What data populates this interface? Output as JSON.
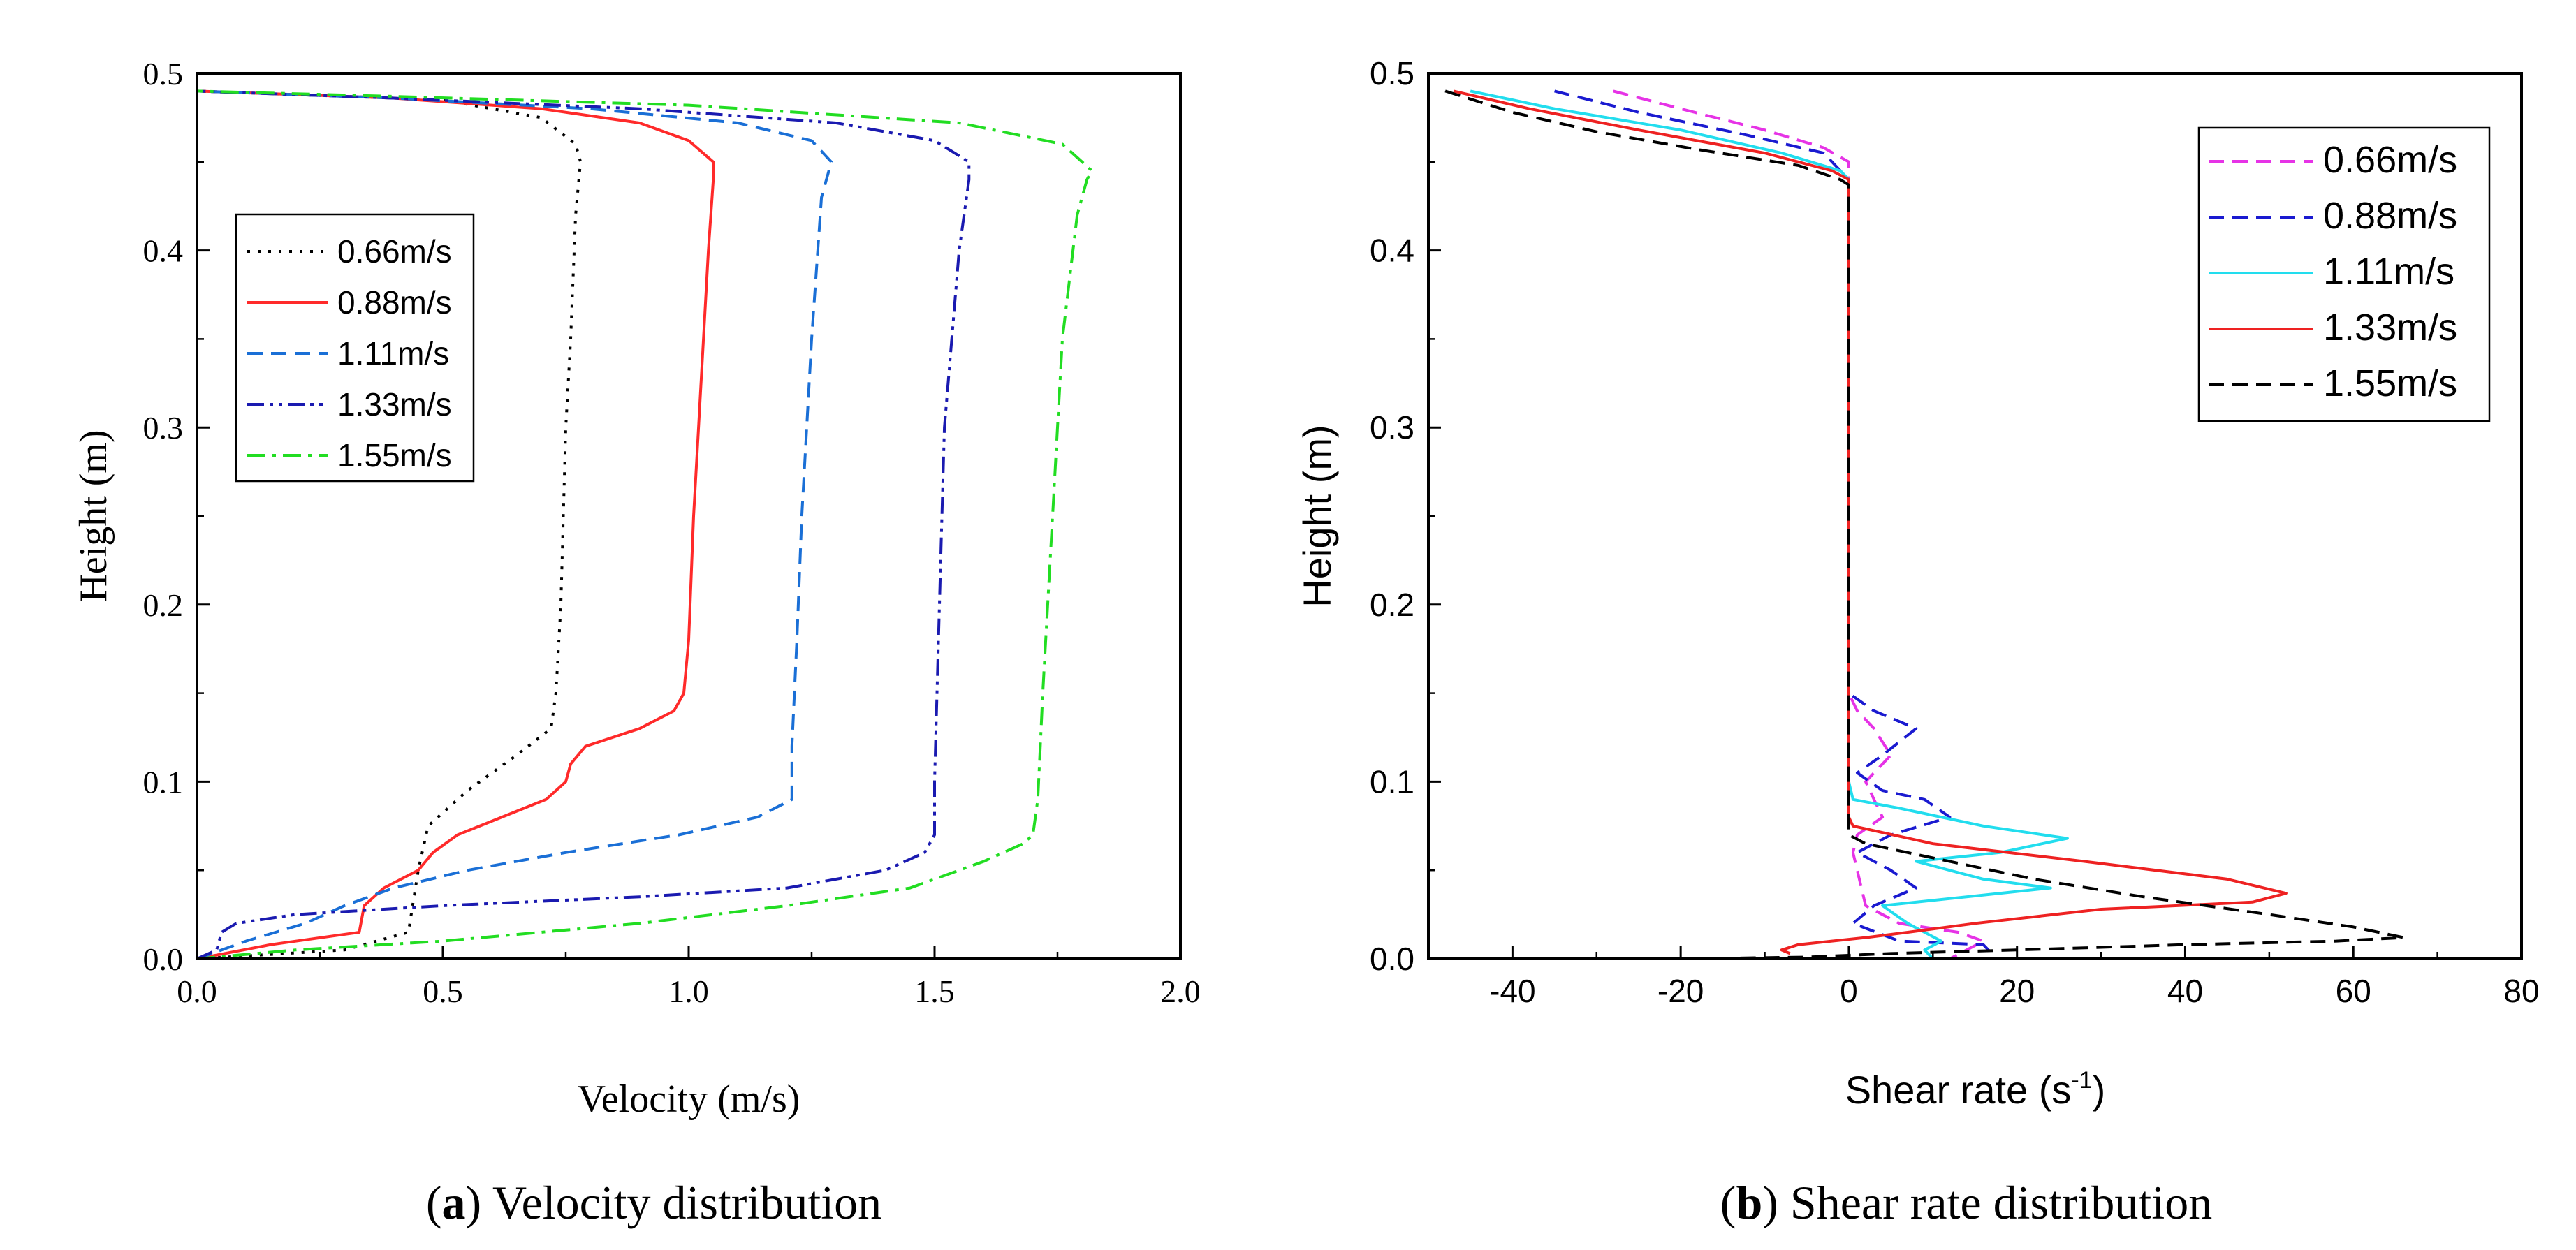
{
  "chart_data": [
    {
      "id": "a",
      "type": "line",
      "caption_label": "a",
      "caption_text": "Velocity distribution",
      "xlabel": "Velocity (m/s)",
      "ylabel": "Height (m)",
      "xlim": [
        0,
        2.0
      ],
      "ylim": [
        0,
        0.5
      ],
      "xticks": [
        "0.0",
        "0.5",
        "1.0",
        "1.5",
        "2.0"
      ],
      "yticks": [
        "0.0",
        "0.1",
        "0.2",
        "0.3",
        "0.4",
        "0.5"
      ],
      "legend_position": "upper-left",
      "series": [
        {
          "name": "0.66m/s",
          "color": "#000000",
          "dash": "dot",
          "points": [
            [
              0,
              0
            ],
            [
              0.3,
              0.005
            ],
            [
              0.43,
              0.015
            ],
            [
              0.45,
              0.05
            ],
            [
              0.47,
              0.075
            ],
            [
              0.55,
              0.095
            ],
            [
              0.65,
              0.115
            ],
            [
              0.72,
              0.13
            ],
            [
              0.73,
              0.15
            ],
            [
              0.74,
              0.2
            ],
            [
              0.75,
              0.3
            ],
            [
              0.76,
              0.35
            ],
            [
              0.77,
              0.42
            ],
            [
              0.78,
              0.45
            ],
            [
              0.77,
              0.46
            ],
            [
              0.7,
              0.475
            ],
            [
              0.5,
              0.485
            ],
            [
              0.2,
              0.488
            ],
            [
              0,
              0.49
            ]
          ]
        },
        {
          "name": "0.88m/s",
          "color": "#ff2a2a",
          "dash": "solid",
          "points": [
            [
              0,
              0
            ],
            [
              0.15,
              0.008
            ],
            [
              0.33,
              0.015
            ],
            [
              0.34,
              0.03
            ],
            [
              0.38,
              0.04
            ],
            [
              0.45,
              0.05
            ],
            [
              0.48,
              0.06
            ],
            [
              0.53,
              0.07
            ],
            [
              0.62,
              0.08
            ],
            [
              0.71,
              0.09
            ],
            [
              0.75,
              0.1
            ],
            [
              0.76,
              0.11
            ],
            [
              0.79,
              0.12
            ],
            [
              0.9,
              0.13
            ],
            [
              0.97,
              0.14
            ],
            [
              0.99,
              0.15
            ],
            [
              1.0,
              0.18
            ],
            [
              1.01,
              0.25
            ],
            [
              1.02,
              0.3
            ],
            [
              1.04,
              0.4
            ],
            [
              1.05,
              0.44
            ],
            [
              1.05,
              0.45
            ],
            [
              1.0,
              0.462
            ],
            [
              0.9,
              0.472
            ],
            [
              0.7,
              0.48
            ],
            [
              0.4,
              0.486
            ],
            [
              0.1,
              0.489
            ],
            [
              0,
              0.49
            ]
          ]
        },
        {
          "name": "1.11m/s",
          "color": "#1a6fd6",
          "dash": "dash",
          "points": [
            [
              0,
              0
            ],
            [
              0.1,
              0.01
            ],
            [
              0.22,
              0.02
            ],
            [
              0.3,
              0.03
            ],
            [
              0.4,
              0.04
            ],
            [
              0.55,
              0.05
            ],
            [
              0.75,
              0.06
            ],
            [
              0.98,
              0.07
            ],
            [
              1.14,
              0.08
            ],
            [
              1.21,
              0.09
            ],
            [
              1.21,
              0.12
            ],
            [
              1.22,
              0.18
            ],
            [
              1.23,
              0.25
            ],
            [
              1.25,
              0.35
            ],
            [
              1.27,
              0.43
            ],
            [
              1.29,
              0.45
            ],
            [
              1.25,
              0.462
            ],
            [
              1.1,
              0.472
            ],
            [
              0.8,
              0.48
            ],
            [
              0.4,
              0.486
            ],
            [
              0,
              0.49
            ]
          ]
        },
        {
          "name": "1.33m/s",
          "color": "#1a1ab0",
          "dash": "dashdotdot",
          "points": [
            [
              0,
              0
            ],
            [
              0.04,
              0.005
            ],
            [
              0.05,
              0.015
            ],
            [
              0.08,
              0.02
            ],
            [
              0.2,
              0.025
            ],
            [
              0.5,
              0.03
            ],
            [
              0.9,
              0.035
            ],
            [
              1.2,
              0.04
            ],
            [
              1.4,
              0.05
            ],
            [
              1.48,
              0.06
            ],
            [
              1.5,
              0.07
            ],
            [
              1.5,
              0.1
            ],
            [
              1.51,
              0.2
            ],
            [
              1.52,
              0.3
            ],
            [
              1.55,
              0.4
            ],
            [
              1.57,
              0.44
            ],
            [
              1.57,
              0.45
            ],
            [
              1.5,
              0.462
            ],
            [
              1.3,
              0.472
            ],
            [
              0.9,
              0.48
            ],
            [
              0.4,
              0.486
            ],
            [
              0,
              0.49
            ]
          ]
        },
        {
          "name": "1.55m/s",
          "color": "#22dd22",
          "dash": "dashdot",
          "points": [
            [
              0,
              0
            ],
            [
              0.2,
              0.005
            ],
            [
              0.5,
              0.01
            ],
            [
              0.9,
              0.02
            ],
            [
              1.2,
              0.03
            ],
            [
              1.45,
              0.04
            ],
            [
              1.6,
              0.055
            ],
            [
              1.68,
              0.065
            ],
            [
              1.7,
              0.07
            ],
            [
              1.71,
              0.09
            ],
            [
              1.72,
              0.15
            ],
            [
              1.74,
              0.25
            ],
            [
              1.76,
              0.35
            ],
            [
              1.79,
              0.42
            ],
            [
              1.81,
              0.44
            ],
            [
              1.82,
              0.445
            ],
            [
              1.76,
              0.46
            ],
            [
              1.55,
              0.472
            ],
            [
              1.0,
              0.482
            ],
            [
              0.4,
              0.487
            ],
            [
              0,
              0.49
            ]
          ]
        }
      ]
    },
    {
      "id": "b",
      "type": "line",
      "caption_label": "b",
      "caption_text": "Shear rate distribution",
      "xlabel": "Shear rate (s",
      "xlabel_sup": "-1",
      "xlabel_end": ")",
      "ylabel": "Height (m)",
      "xlim": [
        -50,
        80
      ],
      "ylim": [
        0,
        0.5
      ],
      "xticks": [
        "-40",
        "-20",
        "0",
        "20",
        "40",
        "60",
        "80"
      ],
      "yticks": [
        "0.0",
        "0.1",
        "0.2",
        "0.3",
        "0.4",
        "0.5"
      ],
      "legend_position": "top-right",
      "series": [
        {
          "name": "0.66m/s",
          "color": "#e633e6",
          "dash": "dash",
          "points": [
            [
              -28,
              0.49
            ],
            [
              -20,
              0.48
            ],
            [
              -10,
              0.468
            ],
            [
              -3,
              0.458
            ],
            [
              0,
              0.45
            ],
            [
              0,
              0.15
            ],
            [
              1,
              0.14
            ],
            [
              3,
              0.13
            ],
            [
              5,
              0.115
            ],
            [
              2,
              0.1
            ],
            [
              3,
              0.09
            ],
            [
              4,
              0.08
            ],
            [
              1,
              0.07
            ],
            [
              0.5,
              0.06
            ],
            [
              2,
              0.03
            ],
            [
              6,
              0.02
            ],
            [
              13,
              0.015
            ],
            [
              16,
              0.01
            ],
            [
              14,
              0.005
            ],
            [
              12,
              0.0
            ]
          ]
        },
        {
          "name": "0.88m/s",
          "color": "#1a1ad0",
          "dash": "dash",
          "points": [
            [
              -35,
              0.49
            ],
            [
              -25,
              0.478
            ],
            [
              -12,
              0.465
            ],
            [
              -3,
              0.455
            ],
            [
              0,
              0.44
            ],
            [
              0,
              0.15
            ],
            [
              3,
              0.14
            ],
            [
              8,
              0.13
            ],
            [
              4,
              0.115
            ],
            [
              1,
              0.105
            ],
            [
              4,
              0.095
            ],
            [
              9,
              0.09
            ],
            [
              12,
              0.08
            ],
            [
              5,
              0.07
            ],
            [
              1,
              0.06
            ],
            [
              5,
              0.05
            ],
            [
              8,
              0.04
            ],
            [
              3,
              0.03
            ],
            [
              0.5,
              0.02
            ],
            [
              6,
              0.01
            ],
            [
              16,
              0.008
            ],
            [
              17,
              0.003
            ]
          ]
        },
        {
          "name": "1.11m/s",
          "color": "#22ddee",
          "dash": "solid",
          "points": [
            [
              -45,
              0.49
            ],
            [
              -35,
              0.48
            ],
            [
              -20,
              0.468
            ],
            [
              -8,
              0.455
            ],
            [
              -1,
              0.445
            ],
            [
              0,
              0.44
            ],
            [
              0,
              0.1
            ],
            [
              0.5,
              0.09
            ],
            [
              6,
              0.085
            ],
            [
              16,
              0.075
            ],
            [
              26,
              0.068
            ],
            [
              18,
              0.06
            ],
            [
              8,
              0.055
            ],
            [
              16,
              0.045
            ],
            [
              24,
              0.04
            ],
            [
              14,
              0.035
            ],
            [
              4,
              0.03
            ],
            [
              7,
              0.02
            ],
            [
              11,
              0.01
            ],
            [
              9,
              0.005
            ],
            [
              10,
              0.0
            ]
          ]
        },
        {
          "name": "1.33m/s",
          "color": "#ee2222",
          "dash": "solid",
          "points": [
            [
              -47,
              0.49
            ],
            [
              -38,
              0.48
            ],
            [
              -25,
              0.468
            ],
            [
              -10,
              0.455
            ],
            [
              -2,
              0.445
            ],
            [
              0,
              0.44
            ],
            [
              0,
              0.08
            ],
            [
              0.5,
              0.075
            ],
            [
              10,
              0.065
            ],
            [
              28,
              0.055
            ],
            [
              45,
              0.045
            ],
            [
              52,
              0.037
            ],
            [
              48,
              0.032
            ],
            [
              30,
              0.028
            ],
            [
              15,
              0.02
            ],
            [
              7,
              0.015
            ],
            [
              2,
              0.012
            ],
            [
              -2,
              0.01
            ],
            [
              -6,
              0.008
            ],
            [
              -8,
              0.005
            ],
            [
              -7,
              0.003
            ]
          ]
        },
        {
          "name": "1.55m/s",
          "color": "#000000",
          "dash": "dash",
          "points": [
            [
              -48,
              0.49
            ],
            [
              -40,
              0.478
            ],
            [
              -30,
              0.467
            ],
            [
              -18,
              0.457
            ],
            [
              -6,
              0.448
            ],
            [
              -1,
              0.44
            ],
            [
              0,
              0.437
            ],
            [
              0,
              0.07
            ],
            [
              2,
              0.065
            ],
            [
              12,
              0.055
            ],
            [
              22,
              0.045
            ],
            [
              35,
              0.035
            ],
            [
              50,
              0.025
            ],
            [
              60,
              0.018
            ],
            [
              66,
              0.012
            ],
            [
              58,
              0.01
            ],
            [
              40,
              0.008
            ],
            [
              20,
              0.005
            ],
            [
              5,
              0.003
            ],
            [
              -5,
              0.001
            ],
            [
              -20,
              0.0
            ]
          ]
        }
      ]
    }
  ]
}
